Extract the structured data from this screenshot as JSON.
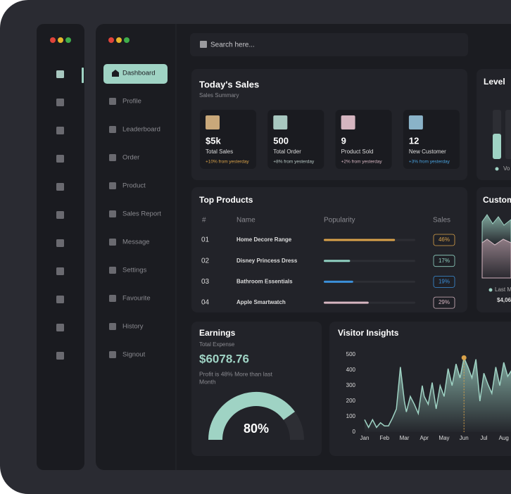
{
  "search": {
    "placeholder": "Search here..."
  },
  "nav": [
    "Dashboard",
    "Profile",
    "Leaderboard",
    "Order",
    "Product",
    "Sales Report",
    "Message",
    "Settings",
    "Favourite",
    "History",
    "Signout"
  ],
  "todays_sales": {
    "title": "Today's Sales",
    "subtitle": "Sales Summary",
    "cards": [
      {
        "value": "$5k",
        "label": "Total Sales",
        "change": "+10% from yesterday",
        "color": "#d9a24a"
      },
      {
        "value": "500",
        "label": "Total Order",
        "change": "+8% from yesterday",
        "color": "#b8c8c4"
      },
      {
        "value": "9",
        "label": "Product Sold",
        "change": "+2% from yesterday",
        "color": "#d5b5c0"
      },
      {
        "value": "12",
        "label": "New Customer",
        "change": "+3% from yesterday",
        "color": "#4aa3e0"
      }
    ]
  },
  "level": {
    "title": "Level",
    "legend": "Vo"
  },
  "top_products": {
    "title": "Top Products",
    "columns": [
      "#",
      "Name",
      "Popularity",
      "Sales"
    ],
    "rows": [
      {
        "rank": "01",
        "name": "Home Decore Range",
        "popularity": 46,
        "sales": "46%",
        "color": "#d9a24a"
      },
      {
        "rank": "02",
        "name": "Disney Princess Dress",
        "popularity": 17,
        "sales": "17%",
        "color": "#8fcfc0"
      },
      {
        "rank": "03",
        "name": "Bathroom Essentials",
        "popularity": 19,
        "sales": "19%",
        "color": "#3b8fd9"
      },
      {
        "rank": "04",
        "name": "Apple Smartwatch",
        "popularity": 29,
        "sales": "29%",
        "color": "#d5b5c0"
      }
    ]
  },
  "customer": {
    "title": "Custom",
    "legend": "Last M",
    "value": "$4,06"
  },
  "earnings": {
    "title": "Earnings",
    "subtitle": "Total Expense",
    "amount": "$6078.76",
    "note": [
      "Profit is 48% More than last",
      "Month"
    ],
    "gauge": {
      "value": 80,
      "label": "80%"
    }
  },
  "visitor_insights": {
    "title": "Visitor Insights",
    "chart": {
      "type": "area",
      "color": "#9fd3c4",
      "x": [
        0,
        0.2,
        0.4,
        0.6,
        0.8,
        1,
        1.2,
        1.4,
        1.6,
        1.8,
        2,
        2.1,
        2.3,
        2.5,
        2.7,
        2.9,
        3,
        3.2,
        3.4,
        3.6,
        3.8,
        4,
        4.2,
        4.4,
        4.6,
        4.8,
        5,
        5.2,
        5.4,
        5.6,
        5.8,
        6,
        6.2,
        6.4,
        6.6,
        6.8,
        7,
        7.2,
        7.4
      ],
      "values": [
        80,
        30,
        80,
        30,
        60,
        40,
        40,
        90,
        150,
        420,
        200,
        130,
        230,
        180,
        120,
        300,
        230,
        180,
        320,
        150,
        300,
        230,
        410,
        300,
        440,
        350,
        480,
        420,
        350,
        470,
        200,
        380,
        310,
        250,
        420,
        300,
        450,
        360,
        400
      ],
      "xlim": [
        0,
        7.4
      ],
      "ylim": [
        0,
        500
      ],
      "yticks": [
        0,
        100,
        200,
        300,
        400,
        500
      ],
      "xticks": [
        {
          "value": 0,
          "label": "Jan"
        },
        {
          "value": 1,
          "label": "Feb"
        },
        {
          "value": 2,
          "label": "Mar"
        },
        {
          "value": 3,
          "label": "Apr"
        },
        {
          "value": 4,
          "label": "May"
        },
        {
          "value": 5,
          "label": "Jun"
        },
        {
          "value": 6,
          "label": "Jul"
        },
        {
          "value": 7,
          "label": "Aug"
        }
      ]
    }
  }
}
